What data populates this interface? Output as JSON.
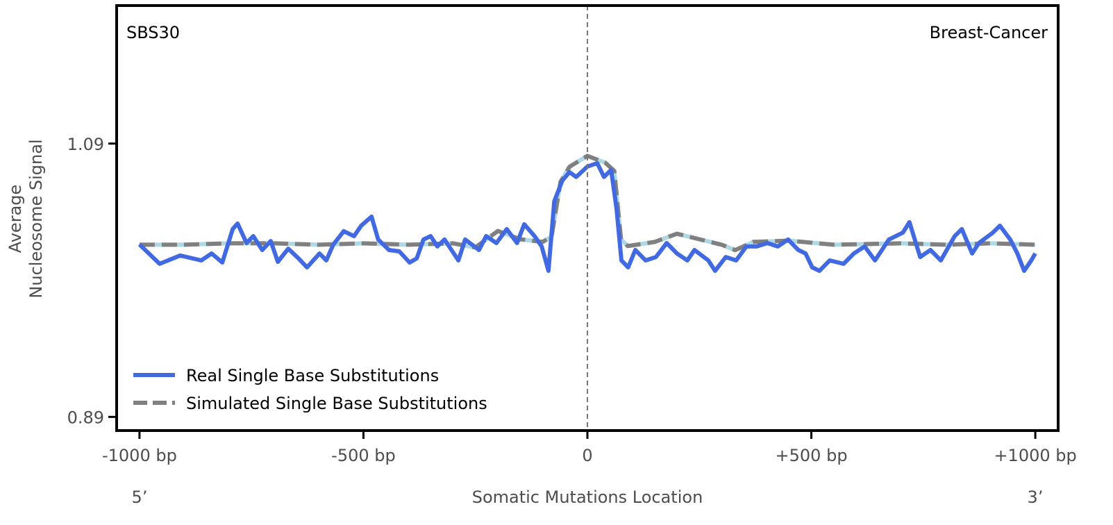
{
  "chart_data": {
    "type": "line",
    "annotation_left": "SBS30",
    "annotation_right": "Breast-Cancer",
    "xlabel": "Somatic Mutations Location",
    "ylabel_lines": [
      "Average",
      "Nucleosome Signal"
    ],
    "x_end_labels": {
      "left": "5’",
      "right": "3’"
    },
    "xlim": [
      -1051,
      1051
    ],
    "ylim": [
      0.88,
      1.191
    ],
    "x_ticks": [
      {
        "value": -1000,
        "label": "-1000 bp"
      },
      {
        "value": -500,
        "label": "-500 bp"
      },
      {
        "value": 0,
        "label": "0"
      },
      {
        "value": 500,
        "label": "+500 bp"
      },
      {
        "value": 1000,
        "label": "+1000 bp"
      }
    ],
    "y_ticks": [
      {
        "value": 1.09,
        "label": "1.09"
      },
      {
        "value": 0.89,
        "label": "0.89"
      }
    ],
    "grid": false,
    "vline_at": 0,
    "legend_position": "bottom-left",
    "series": [
      {
        "name": "Real Single Base Substitutions",
        "color": "#4169e1",
        "style": "solid",
        "x": [
          -1000,
          -955,
          -909,
          -862,
          -839,
          -815,
          -792,
          -781,
          -761,
          -746,
          -726,
          -707,
          -691,
          -668,
          -645,
          -626,
          -598,
          -583,
          -567,
          -544,
          -521,
          -505,
          -482,
          -467,
          -443,
          -420,
          -397,
          -381,
          -366,
          -350,
          -335,
          -319,
          -288,
          -273,
          -242,
          -226,
          -203,
          -180,
          -157,
          -141,
          -118,
          -102,
          -87,
          -74,
          -56,
          -40,
          -25,
          0,
          22,
          37,
          53,
          65,
          76,
          91,
          107,
          130,
          153,
          177,
          200,
          223,
          239,
          270,
          285,
          309,
          332,
          355,
          378,
          402,
          425,
          448,
          471,
          487,
          502,
          518,
          541,
          572,
          595,
          619,
          642,
          673,
          704,
          719,
          743,
          766,
          789,
          820,
          836,
          859,
          874,
          905,
          921,
          944,
          960,
          975,
          991,
          1000
        ],
        "y": [
          1.0162,
          1.002,
          1.0081,
          1.0045,
          1.0096,
          1.003,
          1.0274,
          1.0315,
          1.0172,
          1.0223,
          1.0121,
          1.0187,
          1.0035,
          1.0131,
          1.006,
          0.9994,
          1.0096,
          1.0045,
          1.0162,
          1.0259,
          1.0223,
          1.0299,
          1.0365,
          1.0198,
          1.0121,
          1.0111,
          1.003,
          1.006,
          1.0198,
          1.0223,
          1.0147,
          1.0198,
          1.0045,
          1.0198,
          1.0121,
          1.0223,
          1.0172,
          1.0274,
          1.0172,
          1.031,
          1.0223,
          1.0147,
          0.9969,
          1.0478,
          1.063,
          1.0691,
          1.0656,
          1.0732,
          1.0757,
          1.0656,
          1.0707,
          1.0427,
          1.0045,
          0.9994,
          1.0121,
          1.0045,
          1.007,
          1.0172,
          1.0096,
          1.0045,
          1.0121,
          1.0045,
          0.9969,
          1.007,
          1.0045,
          1.0147,
          1.0147,
          1.0172,
          1.0147,
          1.0198,
          1.0121,
          1.0096,
          0.9994,
          0.9969,
          1.0045,
          1.002,
          1.0096,
          1.0147,
          1.0045,
          1.0198,
          1.0248,
          1.0325,
          1.007,
          1.0121,
          1.0045,
          1.0223,
          1.0274,
          1.0096,
          1.0172,
          1.0248,
          1.0299,
          1.0198,
          1.0096,
          0.9969,
          1.0045,
          1.0096
        ]
      },
      {
        "name": "Simulated Single Base Substitutions",
        "color": "#808080",
        "underlay_color": "#add8e6",
        "style": "dashed",
        "x": [
          -1000,
          -900,
          -800,
          -700,
          -600,
          -500,
          -400,
          -300,
          -250,
          -200,
          -150,
          -100,
          -80,
          -60,
          -40,
          0,
          40,
          60,
          75,
          90,
          150,
          200,
          250,
          300,
          330,
          370,
          450,
          550,
          700,
          800,
          900,
          1000
        ],
        "y": [
          1.016,
          1.016,
          1.017,
          1.017,
          1.016,
          1.017,
          1.016,
          1.017,
          1.014,
          1.026,
          1.02,
          1.018,
          1.022,
          1.062,
          1.073,
          1.081,
          1.076,
          1.07,
          1.02,
          1.015,
          1.018,
          1.024,
          1.02,
          1.016,
          1.012,
          1.018,
          1.019,
          1.016,
          1.017,
          1.016,
          1.017,
          1.016
        ]
      }
    ]
  }
}
